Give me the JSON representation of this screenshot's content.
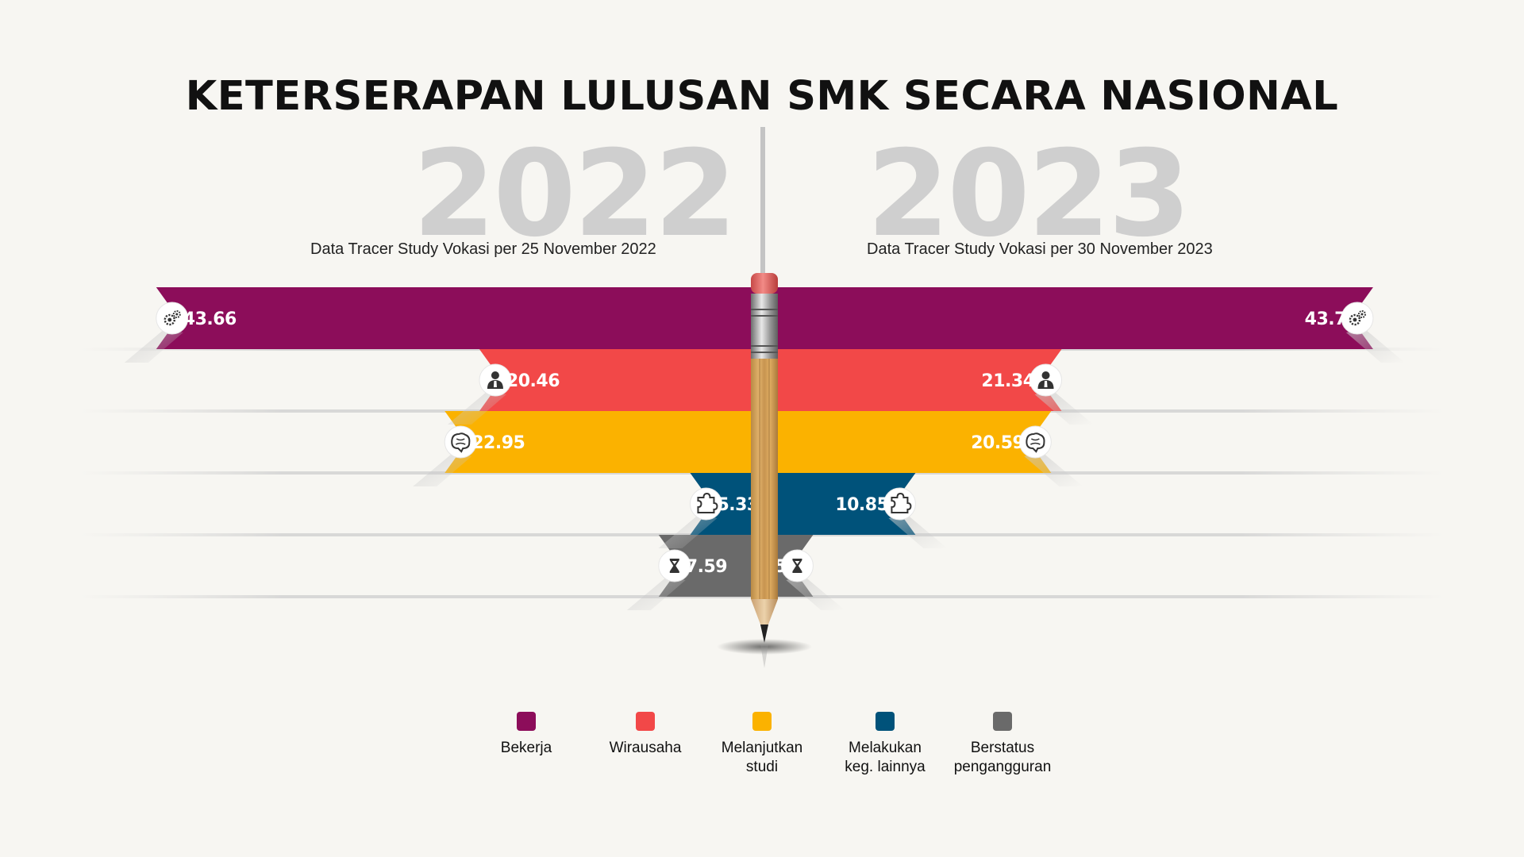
{
  "title": "KETERSERAPAN LULUSAN SMK SECARA NASIONAL",
  "left_panel": {
    "year": "2022",
    "subtitle": "Data Tracer Study Vokasi per 25 November 2022"
  },
  "right_panel": {
    "year": "2023",
    "subtitle": "Data Tracer Study Vokasi per 30 November 2023"
  },
  "colors": {
    "Bekerja": "#8c0d5a",
    "Wirausaha": "#f24848",
    "Melanjutkan studi": "#fbb200",
    "Melakukan keg. lainnya": "#00527a",
    "Berstatus pengangguran": "#6a6a6a"
  },
  "legend": [
    {
      "label": "Bekerja",
      "color": "#8c0d5a"
    },
    {
      "label": "Wirausaha",
      "color": "#f24848"
    },
    {
      "label": "Melanjutkan studi",
      "color": "#fbb200"
    },
    {
      "label": "Melakukan keg. lainnya",
      "color": "#00527a"
    },
    {
      "label": "Berstatus pengangguran",
      "color": "#6a6a6a"
    }
  ],
  "chart_data": {
    "type": "bar",
    "orientation": "horizontal-butterfly",
    "title": "KETERSERAPAN LULUSAN SMK SECARA NASIONAL",
    "categories": [
      "Bekerja",
      "Wirausaha",
      "Melanjutkan studi",
      "Melakukan keg. lainnya",
      "Berstatus pengangguran"
    ],
    "series": [
      {
        "name": "2022",
        "values": [
          43.66,
          20.46,
          22.95,
          5.33,
          7.59
        ]
      },
      {
        "name": "2023",
        "values": [
          43.7,
          21.34,
          20.59,
          10.85,
          3.5
        ]
      }
    ],
    "icons": [
      "gears-icon",
      "person-icon",
      "brain-icon",
      "puzzle-icon",
      "hourglass-icon"
    ]
  }
}
